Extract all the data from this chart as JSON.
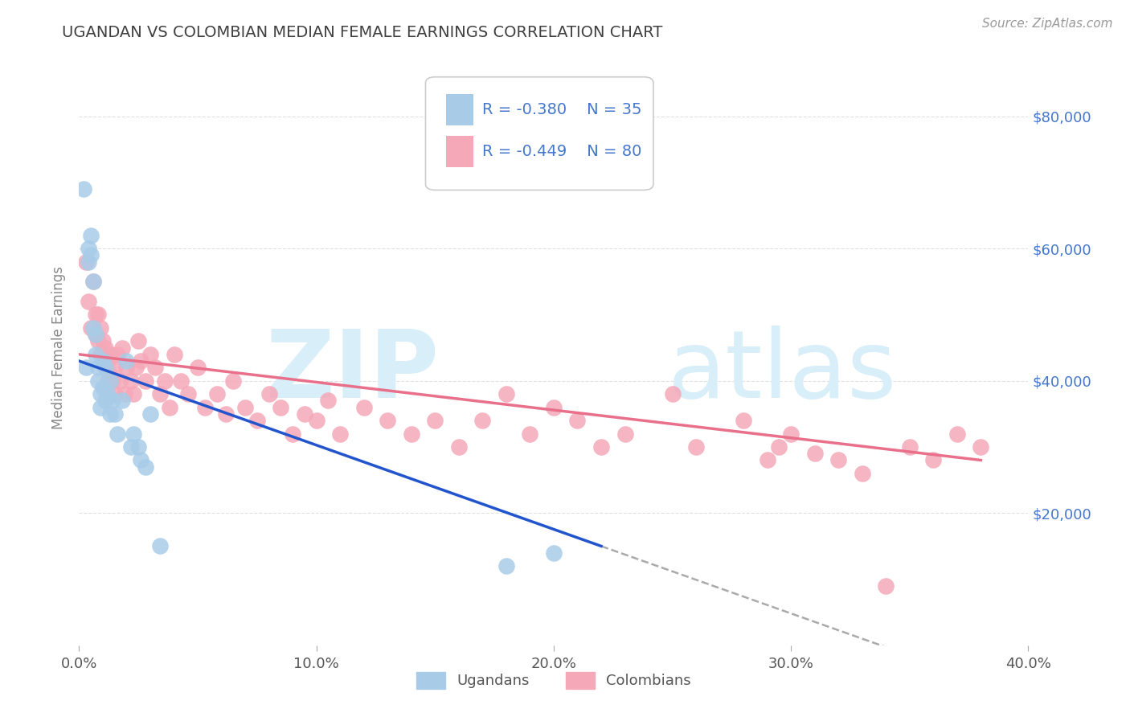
{
  "title": "UGANDAN VS COLOMBIAN MEDIAN FEMALE EARNINGS CORRELATION CHART",
  "source": "Source: ZipAtlas.com",
  "ylabel": "Median Female Earnings",
  "xlim": [
    0.0,
    0.4
  ],
  "ylim": [
    0,
    90000
  ],
  "yticks": [
    0,
    20000,
    40000,
    60000,
    80000
  ],
  "ytick_labels": [
    "",
    "$20,000",
    "$40,000",
    "$60,000",
    "$80,000"
  ],
  "xticks": [
    0.0,
    0.1,
    0.2,
    0.3,
    0.4
  ],
  "xtick_labels": [
    "0.0%",
    "10.0%",
    "20.0%",
    "30.0%",
    "40.0%"
  ],
  "ugandan_color": "#a8cce8",
  "colombian_color": "#f5a8b8",
  "ugandan_line_color": "#2255cc",
  "colombian_line_color": "#e8708a",
  "title_color": "#404040",
  "tick_color_right": "#4477cc",
  "tick_color_x": "#555555",
  "watermark_color": "#d8eef8",
  "background_color": "#ffffff",
  "grid_color": "#cccccc",
  "legend_R": [
    -0.38,
    -0.449
  ],
  "legend_N": [
    35,
    80
  ],
  "legend_labels": [
    "Ugandans",
    "Colombians"
  ],
  "legend_text_color": "#4477cc",
  "ugandan_x": [
    0.002,
    0.003,
    0.004,
    0.004,
    0.005,
    0.005,
    0.006,
    0.006,
    0.007,
    0.007,
    0.008,
    0.008,
    0.009,
    0.009,
    0.01,
    0.01,
    0.011,
    0.011,
    0.012,
    0.013,
    0.013,
    0.014,
    0.015,
    0.016,
    0.018,
    0.02,
    0.022,
    0.023,
    0.025,
    0.026,
    0.028,
    0.03,
    0.034,
    0.18,
    0.2
  ],
  "ugandan_y": [
    69000,
    42000,
    58000,
    60000,
    59000,
    62000,
    55000,
    48000,
    44000,
    47000,
    42000,
    40000,
    38000,
    36000,
    43000,
    39000,
    37000,
    42000,
    38000,
    35000,
    40000,
    37000,
    35000,
    32000,
    37000,
    43000,
    30000,
    32000,
    30000,
    28000,
    27000,
    35000,
    15000,
    12000,
    14000
  ],
  "colombian_x": [
    0.003,
    0.004,
    0.005,
    0.006,
    0.007,
    0.007,
    0.008,
    0.008,
    0.009,
    0.009,
    0.01,
    0.01,
    0.011,
    0.011,
    0.012,
    0.012,
    0.013,
    0.013,
    0.014,
    0.015,
    0.015,
    0.016,
    0.017,
    0.018,
    0.019,
    0.02,
    0.022,
    0.023,
    0.024,
    0.025,
    0.026,
    0.028,
    0.03,
    0.032,
    0.034,
    0.036,
    0.038,
    0.04,
    0.043,
    0.046,
    0.05,
    0.053,
    0.058,
    0.062,
    0.065,
    0.07,
    0.075,
    0.08,
    0.085,
    0.09,
    0.095,
    0.1,
    0.105,
    0.11,
    0.12,
    0.13,
    0.14,
    0.15,
    0.16,
    0.17,
    0.18,
    0.19,
    0.2,
    0.21,
    0.22,
    0.23,
    0.25,
    0.26,
    0.28,
    0.29,
    0.295,
    0.3,
    0.31,
    0.32,
    0.33,
    0.34,
    0.35,
    0.36,
    0.37,
    0.38
  ],
  "colombian_y": [
    58000,
    52000,
    48000,
    55000,
    50000,
    47000,
    46000,
    50000,
    44000,
    48000,
    43000,
    46000,
    42000,
    45000,
    40000,
    43000,
    41000,
    44000,
    40000,
    42000,
    38000,
    44000,
    40000,
    45000,
    38000,
    42000,
    40000,
    38000,
    42000,
    46000,
    43000,
    40000,
    44000,
    42000,
    38000,
    40000,
    36000,
    44000,
    40000,
    38000,
    42000,
    36000,
    38000,
    35000,
    40000,
    36000,
    34000,
    38000,
    36000,
    32000,
    35000,
    34000,
    37000,
    32000,
    36000,
    34000,
    32000,
    34000,
    30000,
    34000,
    38000,
    32000,
    36000,
    34000,
    30000,
    32000,
    38000,
    30000,
    34000,
    28000,
    30000,
    32000,
    29000,
    28000,
    26000,
    9000,
    30000,
    28000,
    32000,
    30000
  ]
}
